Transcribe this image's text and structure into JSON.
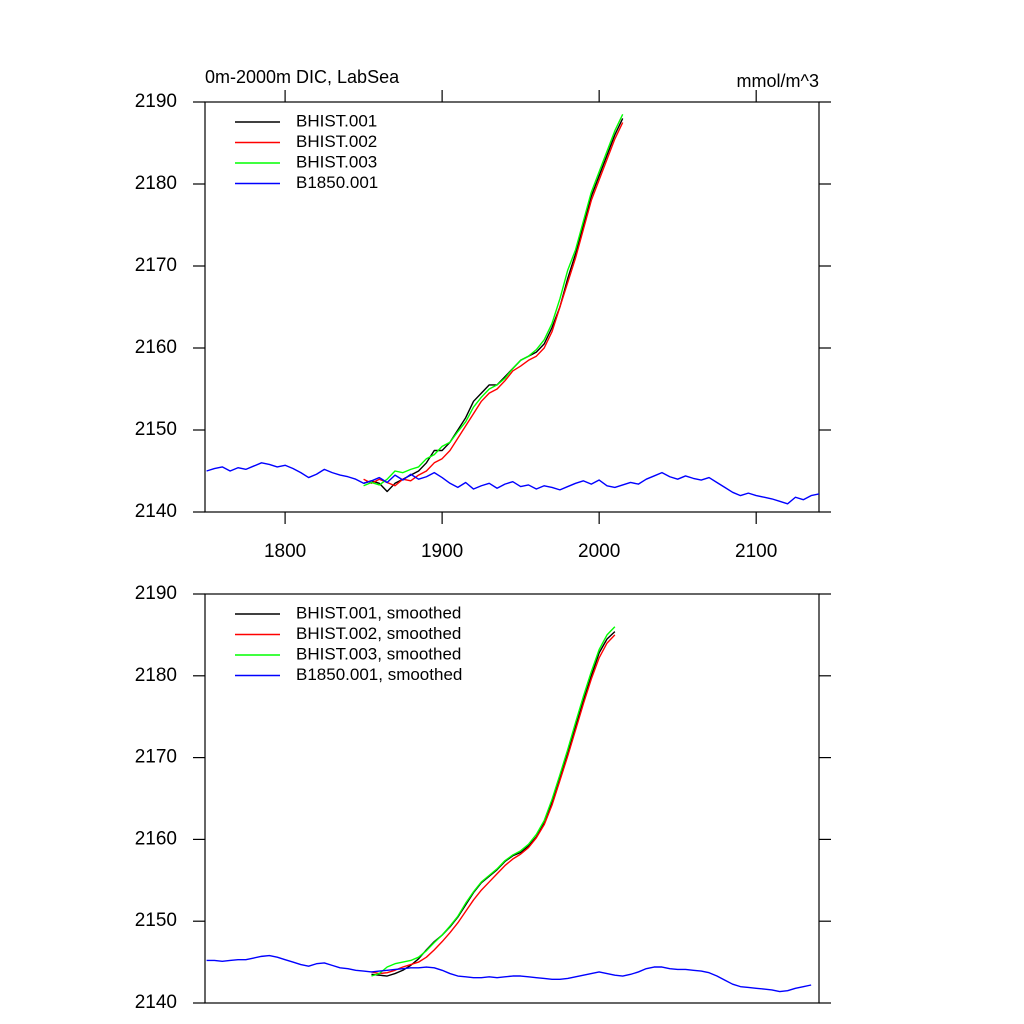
{
  "chart_data": [
    {
      "type": "line",
      "title": "0m-2000m DIC, LabSea",
      "units": "mmol/m^3",
      "xlim": [
        1749,
        2140
      ],
      "xticks": [
        1800,
        1900,
        2000,
        2100
      ],
      "ylim": [
        2140,
        2190
      ],
      "yticks": [
        2140,
        2150,
        2160,
        2170,
        2180,
        2190
      ],
      "legend": "upper left",
      "series": [
        {
          "name": "BHIST.001",
          "color": "#000000",
          "x": [
            1850,
            1855,
            1860,
            1865,
            1870,
            1875,
            1880,
            1885,
            1890,
            1895,
            1900,
            1905,
            1910,
            1915,
            1920,
            1925,
            1930,
            1935,
            1940,
            1945,
            1950,
            1955,
            1960,
            1965,
            1970,
            1975,
            1980,
            1985,
            1990,
            1995,
            2000,
            2005,
            2010,
            2015
          ],
          "values": [
            2143.5,
            2143.8,
            2143.5,
            2142.5,
            2143.5,
            2144,
            2144.5,
            2145,
            2146,
            2147.5,
            2147.5,
            2148.5,
            2150,
            2151.5,
            2153.5,
            2154.5,
            2155.5,
            2155.5,
            2156.5,
            2157.5,
            2158.5,
            2159,
            2159.5,
            2160.5,
            2162.5,
            2165,
            2168.5,
            2171.5,
            2175,
            2178.5,
            2181,
            2183.5,
            2186,
            2188
          ]
        },
        {
          "name": "BHIST.002",
          "color": "#ff0000",
          "x": [
            1850,
            1855,
            1860,
            1865,
            1870,
            1875,
            1880,
            1885,
            1890,
            1895,
            1900,
            1905,
            1910,
            1915,
            1920,
            1925,
            1930,
            1935,
            1940,
            1945,
            1950,
            1955,
            1960,
            1965,
            1970,
            1975,
            1980,
            1985,
            1990,
            1995,
            2000,
            2005,
            2010,
            2015
          ],
          "values": [
            2144,
            2143.5,
            2144,
            2143.6,
            2143.2,
            2144,
            2143.8,
            2144.5,
            2145,
            2146,
            2146.5,
            2147.5,
            2149,
            2150.5,
            2152,
            2153.5,
            2154.5,
            2155,
            2156,
            2157.2,
            2157.8,
            2158.5,
            2159,
            2160,
            2162,
            2165,
            2168,
            2171,
            2174.5,
            2178,
            2180.5,
            2183,
            2185.5,
            2187.5
          ]
        },
        {
          "name": "BHIST.003",
          "color": "#00ff00",
          "x": [
            1850,
            1855,
            1860,
            1865,
            1870,
            1875,
            1880,
            1885,
            1890,
            1895,
            1900,
            1905,
            1910,
            1915,
            1920,
            1925,
            1930,
            1935,
            1940,
            1945,
            1950,
            1955,
            1960,
            1965,
            1970,
            1975,
            1980,
            1985,
            1990,
            1995,
            2000,
            2005,
            2010,
            2015
          ],
          "values": [
            2143.2,
            2143.6,
            2143.3,
            2144,
            2145,
            2144.8,
            2145.2,
            2145.5,
            2146.5,
            2147,
            2148,
            2148.5,
            2149.8,
            2151,
            2152.8,
            2154,
            2155,
            2155.5,
            2156.3,
            2157.5,
            2158.5,
            2159,
            2159.8,
            2161,
            2163,
            2166,
            2169.5,
            2172,
            2175.5,
            2179,
            2181.5,
            2184,
            2186.5,
            2188.5
          ]
        },
        {
          "name": "B1850.001",
          "color": "#0000ff",
          "x": [
            1750,
            1755,
            1760,
            1765,
            1770,
            1775,
            1780,
            1785,
            1790,
            1795,
            1800,
            1805,
            1810,
            1815,
            1820,
            1825,
            1830,
            1835,
            1840,
            1845,
            1850,
            1855,
            1860,
            1865,
            1870,
            1875,
            1880,
            1885,
            1890,
            1895,
            1900,
            1905,
            1910,
            1915,
            1920,
            1925,
            1930,
            1935,
            1940,
            1945,
            1950,
            1955,
            1960,
            1965,
            1970,
            1975,
            1980,
            1985,
            1990,
            1995,
            2000,
            2005,
            2010,
            2015,
            2020,
            2025,
            2030,
            2035,
            2040,
            2045,
            2050,
            2055,
            2060,
            2065,
            2070,
            2075,
            2080,
            2085,
            2090,
            2095,
            2100,
            2105,
            2110,
            2115,
            2120,
            2125,
            2130,
            2135,
            2140
          ],
          "values": [
            2145.0,
            2145.3,
            2145.5,
            2145.0,
            2145.4,
            2145.2,
            2145.6,
            2146.0,
            2145.8,
            2145.5,
            2145.7,
            2145.3,
            2144.8,
            2144.2,
            2144.6,
            2145.2,
            2144.8,
            2144.5,
            2144.3,
            2144.0,
            2143.5,
            2143.8,
            2144.2,
            2143.6,
            2144.5,
            2143.9,
            2144.6,
            2144.0,
            2144.3,
            2144.8,
            2144.2,
            2143.5,
            2143.0,
            2143.6,
            2142.8,
            2143.2,
            2143.5,
            2142.9,
            2143.4,
            2143.7,
            2143.1,
            2143.3,
            2142.8,
            2143.2,
            2143.0,
            2142.7,
            2143.1,
            2143.5,
            2143.8,
            2143.4,
            2143.9,
            2143.2,
            2143.0,
            2143.3,
            2143.6,
            2143.4,
            2144.0,
            2144.4,
            2144.8,
            2144.3,
            2144.0,
            2144.4,
            2144.1,
            2143.9,
            2144.2,
            2143.6,
            2143.0,
            2142.4,
            2142.0,
            2142.3,
            2142.0,
            2141.8,
            2141.6,
            2141.3,
            2141.0,
            2141.8,
            2141.5,
            2142.0,
            2142.2
          ]
        }
      ]
    },
    {
      "type": "line",
      "xlim": [
        1749,
        2140
      ],
      "ylim": [
        2140,
        2190
      ],
      "yticks": [
        2140,
        2150,
        2160,
        2170,
        2180,
        2190
      ],
      "legend": "upper left",
      "series": [
        {
          "name": "BHIST.001, smoothed",
          "color": "#000000",
          "x": [
            1855,
            1860,
            1865,
            1870,
            1875,
            1880,
            1885,
            1890,
            1895,
            1900,
            1905,
            1910,
            1915,
            1920,
            1925,
            1930,
            1935,
            1940,
            1945,
            1950,
            1955,
            1960,
            1965,
            1970,
            1975,
            1980,
            1985,
            1990,
            1995,
            2000,
            2005,
            2010
          ],
          "values": [
            2143.5,
            2143.4,
            2143.3,
            2143.6,
            2144.0,
            2144.6,
            2145.4,
            2146.5,
            2147.5,
            2148.3,
            2149.3,
            2150.5,
            2152.0,
            2153.5,
            2154.7,
            2155.5,
            2156.3,
            2157.3,
            2158.0,
            2158.4,
            2159.2,
            2160.3,
            2162.0,
            2164.5,
            2167.5,
            2170.5,
            2173.8,
            2177.0,
            2180.0,
            2182.8,
            2184.5,
            2185.4
          ]
        },
        {
          "name": "BHIST.002, smoothed",
          "color": "#ff0000",
          "x": [
            1855,
            1860,
            1865,
            1870,
            1875,
            1880,
            1885,
            1890,
            1895,
            1900,
            1905,
            1910,
            1915,
            1920,
            1925,
            1930,
            1935,
            1940,
            1945,
            1950,
            1955,
            1960,
            1965,
            1970,
            1975,
            1980,
            1985,
            1990,
            1995,
            2000,
            2005,
            2010
          ],
          "values": [
            2143.8,
            2143.6,
            2143.7,
            2144.0,
            2144.4,
            2144.7,
            2145.0,
            2145.6,
            2146.5,
            2147.5,
            2148.6,
            2149.8,
            2151.2,
            2152.6,
            2153.8,
            2154.8,
            2155.8,
            2156.8,
            2157.6,
            2158.2,
            2159.0,
            2160.2,
            2161.8,
            2164.2,
            2167.2,
            2170.2,
            2173.4,
            2176.6,
            2179.6,
            2182.2,
            2184.0,
            2185.0
          ]
        },
        {
          "name": "BHIST.003, smoothed",
          "color": "#00ff00",
          "x": [
            1855,
            1860,
            1865,
            1870,
            1875,
            1880,
            1885,
            1890,
            1895,
            1900,
            1905,
            1910,
            1915,
            1920,
            1925,
            1930,
            1935,
            1940,
            1945,
            1950,
            1955,
            1960,
            1965,
            1970,
            1975,
            1980,
            1985,
            1990,
            1995,
            2000,
            2005,
            2010
          ],
          "values": [
            2143.3,
            2143.6,
            2144.4,
            2144.8,
            2145.0,
            2145.2,
            2145.6,
            2146.4,
            2147.4,
            2148.3,
            2149.4,
            2150.6,
            2152.2,
            2153.6,
            2154.8,
            2155.6,
            2156.4,
            2157.4,
            2158.1,
            2158.6,
            2159.4,
            2160.6,
            2162.3,
            2164.9,
            2167.9,
            2171.0,
            2174.3,
            2177.5,
            2180.5,
            2183.2,
            2185.0,
            2186.0
          ]
        },
        {
          "name": "B1850.001, smoothed",
          "color": "#0000ff",
          "x": [
            1750,
            1755,
            1760,
            1765,
            1770,
            1775,
            1780,
            1785,
            1790,
            1795,
            1800,
            1805,
            1810,
            1815,
            1820,
            1825,
            1830,
            1835,
            1840,
            1845,
            1850,
            1855,
            1860,
            1865,
            1870,
            1875,
            1880,
            1885,
            1890,
            1895,
            1900,
            1905,
            1910,
            1915,
            1920,
            1925,
            1930,
            1935,
            1940,
            1945,
            1950,
            1955,
            1960,
            1965,
            1970,
            1975,
            1980,
            1985,
            1990,
            1995,
            2000,
            2005,
            2010,
            2015,
            2020,
            2025,
            2030,
            2035,
            2040,
            2045,
            2050,
            2055,
            2060,
            2065,
            2070,
            2075,
            2080,
            2085,
            2090,
            2095,
            2100,
            2105,
            2110,
            2115,
            2120,
            2125,
            2130,
            2135
          ],
          "values": [
            2145.2,
            2145.2,
            2145.1,
            2145.2,
            2145.3,
            2145.3,
            2145.5,
            2145.7,
            2145.8,
            2145.6,
            2145.3,
            2145.0,
            2144.7,
            2144.5,
            2144.8,
            2144.9,
            2144.6,
            2144.3,
            2144.2,
            2144.0,
            2143.9,
            2143.8,
            2143.9,
            2144.0,
            2144.1,
            2144.2,
            2144.3,
            2144.3,
            2144.4,
            2144.3,
            2144.0,
            2143.6,
            2143.3,
            2143.2,
            2143.1,
            2143.1,
            2143.2,
            2143.1,
            2143.2,
            2143.3,
            2143.3,
            2143.2,
            2143.1,
            2143.0,
            2142.9,
            2142.9,
            2143.0,
            2143.2,
            2143.4,
            2143.6,
            2143.8,
            2143.6,
            2143.4,
            2143.3,
            2143.5,
            2143.8,
            2144.2,
            2144.4,
            2144.4,
            2144.2,
            2144.1,
            2144.1,
            2144.0,
            2143.9,
            2143.7,
            2143.3,
            2142.8,
            2142.3,
            2142.0,
            2141.9,
            2141.8,
            2141.7,
            2141.6,
            2141.4,
            2141.5,
            2141.8,
            2142.0,
            2142.2
          ]
        }
      ]
    }
  ]
}
